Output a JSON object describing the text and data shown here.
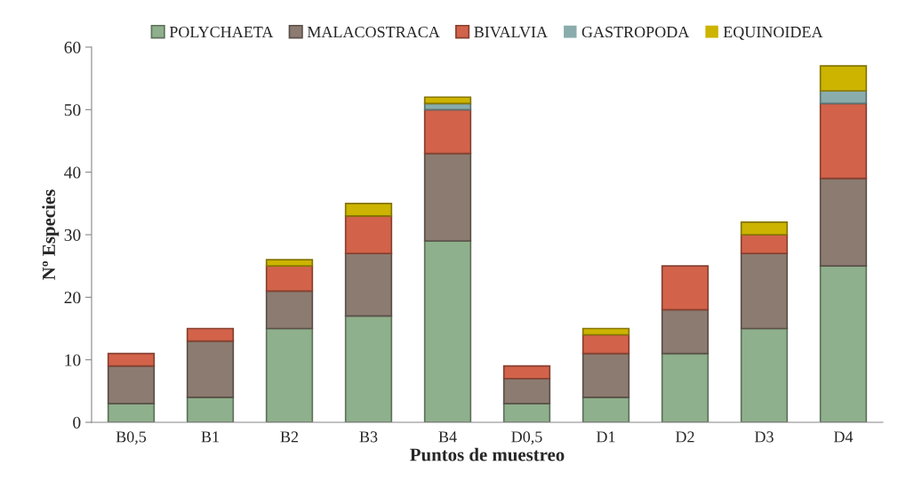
{
  "chart_data": {
    "type": "bar",
    "stacked": true,
    "xlabel": "Puntos de muestreo",
    "ylabel": "Nº Especies",
    "categories": [
      "B0,5",
      "B1",
      "B2",
      "B3",
      "B4",
      "D0,5",
      "D1",
      "D2",
      "D3",
      "D4"
    ],
    "series": [
      {
        "name": "POLYCHAETA",
        "color": "#8fb08c",
        "values": [
          3,
          4,
          15,
          17,
          29,
          3,
          4,
          11,
          15,
          25
        ]
      },
      {
        "name": "MALACOSTRACA",
        "color": "#8c7b70",
        "values": [
          6,
          9,
          6,
          10,
          14,
          4,
          7,
          7,
          12,
          14
        ]
      },
      {
        "name": "BIVALVIA",
        "color": "#d2634a",
        "values": [
          2,
          2,
          4,
          6,
          7,
          2,
          3,
          7,
          3,
          12
        ]
      },
      {
        "name": "GASTROPODA",
        "color": "#8aacad",
        "values": [
          0,
          0,
          0,
          0,
          1,
          0,
          0,
          0,
          0,
          2
        ]
      },
      {
        "name": "EQUINOIDEA",
        "color": "#ccb400",
        "values": [
          0,
          0,
          1,
          2,
          1,
          0,
          1,
          0,
          2,
          4
        ]
      }
    ],
    "ylim": [
      0,
      60
    ],
    "yticks": [
      0,
      10,
      20,
      30,
      40,
      50,
      60
    ],
    "grid": false,
    "legend": "top"
  }
}
